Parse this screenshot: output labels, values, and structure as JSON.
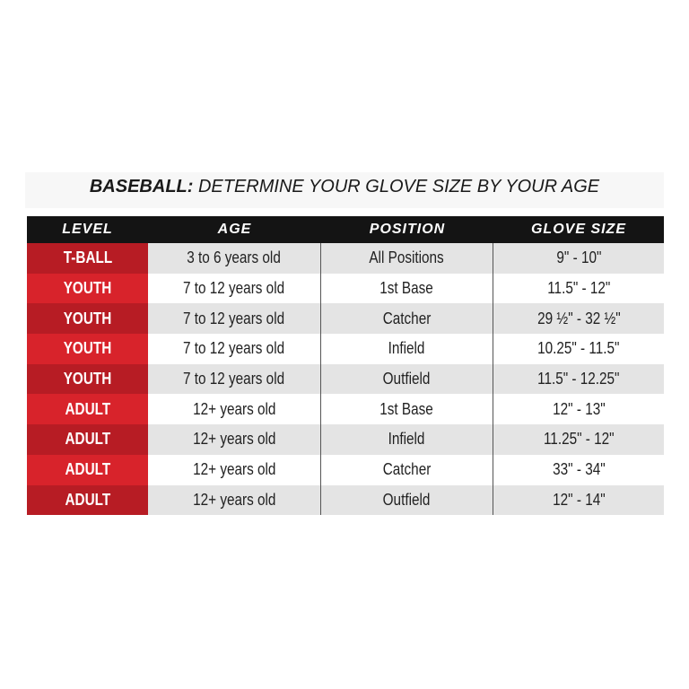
{
  "title": {
    "bold": "BASEBALL:",
    "rest": " DETERMINE YOUR GLOVE SIZE BY YOUR AGE"
  },
  "headers": [
    "LEVEL",
    "AGE",
    "POSITION",
    "GLOVE SIZE"
  ],
  "colors": {
    "header_bg": "#141414",
    "level_dark": "#b71c24",
    "level_bright": "#d8232b",
    "row_gray": "#e4e4e4"
  },
  "rows": [
    [
      "T-BALL",
      "3 to 6 years old",
      "All Positions",
      "9\" - 10\""
    ],
    [
      "YOUTH",
      "7 to 12 years old",
      "1st Base",
      "11.5\" - 12\""
    ],
    [
      "YOUTH",
      "7 to 12 years old",
      "Catcher",
      "29 ½\" - 32 ½\""
    ],
    [
      "YOUTH",
      "7 to 12 years old",
      "Infield",
      "10.25\" - 11.5\""
    ],
    [
      "YOUTH",
      "7 to 12 years old",
      "Outfield",
      "11.5\" - 12.25\""
    ],
    [
      "ADULT",
      "12+ years old",
      "1st Base",
      "12\" - 13\""
    ],
    [
      "ADULT",
      "12+ years old",
      "Infield",
      "11.25\" - 12\""
    ],
    [
      "ADULT",
      "12+ years old",
      "Catcher",
      "33\" - 34\""
    ],
    [
      "ADULT",
      "12+ years old",
      "Outfield",
      "12\" - 14\""
    ]
  ]
}
